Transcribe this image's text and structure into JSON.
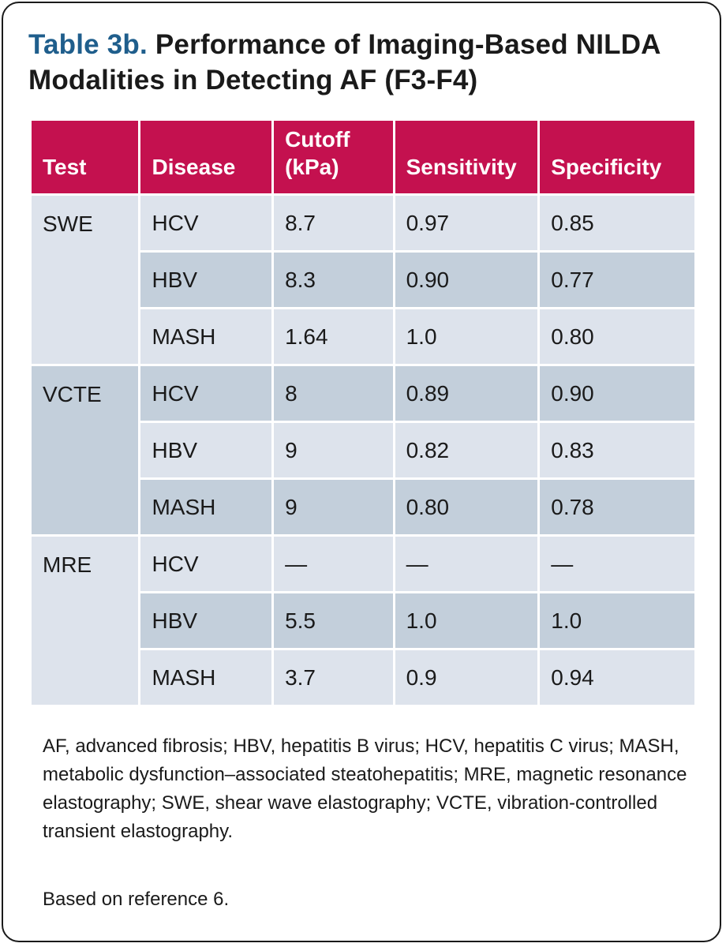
{
  "title": {
    "label": "Table 3b.",
    "text": "Performance of Imaging-Based NILDA Modalities in Detecting AF (F3-F4)"
  },
  "table": {
    "headers": [
      "Test",
      "Disease",
      "Cutoff (kPa)",
      "Sensitivity",
      "Specificity"
    ],
    "groups": [
      {
        "test": "SWE",
        "rows": [
          {
            "disease": "HCV",
            "cutoff": "8.7",
            "sensitivity": "0.97",
            "specificity": "0.85"
          },
          {
            "disease": "HBV",
            "cutoff": "8.3",
            "sensitivity": "0.90",
            "specificity": "0.77"
          },
          {
            "disease": "MASH",
            "cutoff": "1.64",
            "sensitivity": "1.0",
            "specificity": "0.80"
          }
        ]
      },
      {
        "test": "VCTE",
        "rows": [
          {
            "disease": "HCV",
            "cutoff": "8",
            "sensitivity": "0.89",
            "specificity": "0.90"
          },
          {
            "disease": "HBV",
            "cutoff": "9",
            "sensitivity": "0.82",
            "specificity": "0.83"
          },
          {
            "disease": "MASH",
            "cutoff": "9",
            "sensitivity": "0.80",
            "specificity": "0.78"
          }
        ]
      },
      {
        "test": "MRE",
        "rows": [
          {
            "disease": "HCV",
            "cutoff": "—",
            "sensitivity": "—",
            "specificity": "—"
          },
          {
            "disease": "HBV",
            "cutoff": "5.5",
            "sensitivity": "1.0",
            "specificity": "1.0"
          },
          {
            "disease": "MASH",
            "cutoff": "3.7",
            "sensitivity": "0.9",
            "specificity": "0.94"
          }
        ]
      }
    ]
  },
  "footnote": "AF, advanced fibrosis; HBV, hepatitis B virus; HCV, hepatitis C virus; MASH, metabolic dysfunction–associated steatohepatitis; MRE, magnetic resonance elastography; SWE, shear wave elastography; VCTE, vibration-controlled transient elastography.",
  "source": "Based on reference 6.",
  "colors": {
    "header_bg": "#c4114f",
    "title_label": "#1f5e8c",
    "row_light": "#dde3ec",
    "row_dark": "#c3cfdb"
  }
}
